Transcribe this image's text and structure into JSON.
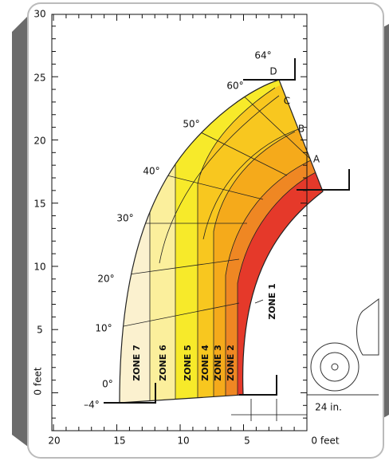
{
  "y_axis": {
    "labels": [
      "30",
      "25",
      "20",
      "15",
      "10",
      "5"
    ],
    "zero_label": "0 feet"
  },
  "x_axis": {
    "labels": [
      "20",
      "15",
      "10",
      "5"
    ],
    "zero_label": "0 feet"
  },
  "angles": [
    "64°",
    "60°",
    "50°",
    "40°",
    "30°",
    "20°",
    "10°",
    "0°",
    "–4°"
  ],
  "points": [
    "D",
    "C",
    "B",
    "A"
  ],
  "zones": [
    "ZONE 7",
    "ZONE 6",
    "ZONE 5",
    "ZONE 4",
    "ZONE 3",
    "ZONE 2",
    "ZONE 1"
  ],
  "dimension": "24 in."
}
